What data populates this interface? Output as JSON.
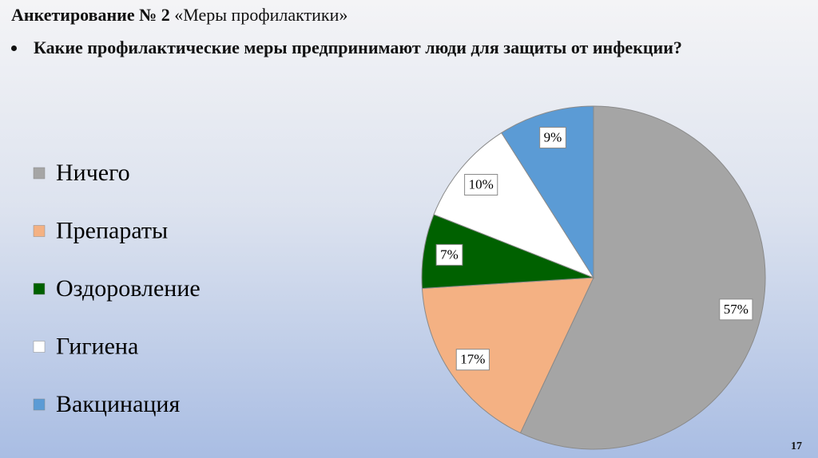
{
  "slide": {
    "title_bold": "Анкетирование № 2",
    "title_rest": "«Меры профилактики»",
    "question": "Какие профилактические меры предпринимают люди для защиты от инфекции?",
    "page_number": "17"
  },
  "chart_data": {
    "type": "pie",
    "categories": [
      "Ничего",
      "Препараты",
      "Оздоровление",
      "Гигиена",
      "Вакцинация"
    ],
    "values": [
      57,
      17,
      7,
      10,
      9
    ],
    "value_labels": [
      "57%",
      "17%",
      "7%",
      "10%",
      "9%"
    ],
    "colors": [
      "#a5a5a5",
      "#f4b183",
      "#006100",
      "#ffffff",
      "#5b9bd5"
    ],
    "legend": "left"
  }
}
